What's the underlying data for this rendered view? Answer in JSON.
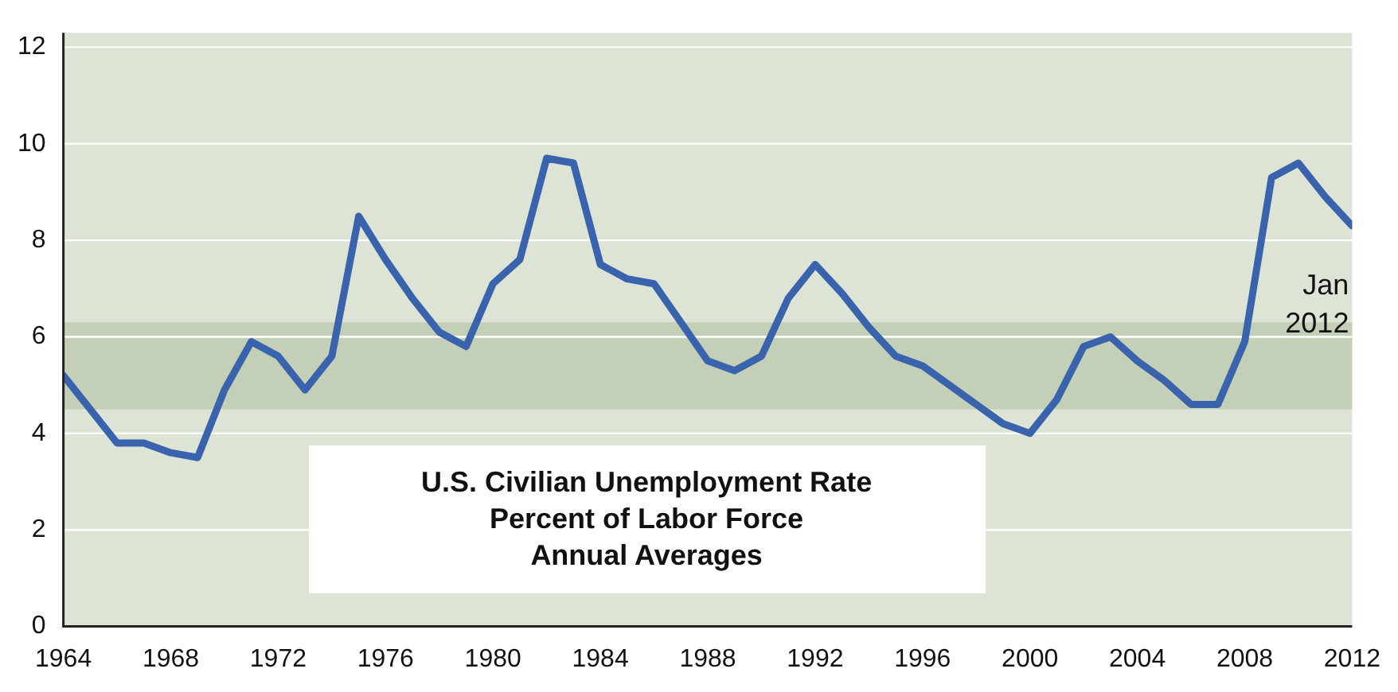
{
  "chart_data": {
    "type": "line",
    "title": "U.S. Civilian Unemployment Rate",
    "subtitle": "Percent of Labor Force",
    "annotations": [
      "Annual Averages",
      {
        "text": "Jan 2012",
        "x": 2012,
        "y": 8.3
      }
    ],
    "x": [
      1964,
      1965,
      1966,
      1967,
      1968,
      1969,
      1970,
      1971,
      1972,
      1973,
      1974,
      1975,
      1976,
      1977,
      1978,
      1979,
      1980,
      1981,
      1982,
      1983,
      1984,
      1985,
      1986,
      1987,
      1988,
      1989,
      1990,
      1991,
      1992,
      1993,
      1994,
      1995,
      1996,
      1997,
      1998,
      1999,
      2000,
      2001,
      2002,
      2003,
      2004,
      2005,
      2006,
      2007,
      2008,
      2009,
      2010,
      2011,
      2012
    ],
    "series": [
      {
        "color": "#3a63ad",
        "values": [
          5.2,
          4.5,
          3.8,
          3.8,
          3.6,
          3.5,
          4.9,
          5.9,
          5.6,
          4.9,
          5.6,
          8.5,
          7.6,
          6.8,
          6.1,
          5.8,
          7.1,
          7.6,
          9.7,
          9.6,
          7.5,
          7.2,
          7.1,
          6.3,
          5.5,
          5.3,
          5.6,
          6.8,
          7.5,
          6.9,
          6.2,
          5.6,
          5.4,
          5.0,
          4.6,
          4.2,
          4.0,
          4.7,
          5.8,
          6.0,
          5.5,
          5.1,
          4.6,
          4.6,
          5.9,
          9.3,
          9.6,
          8.9,
          8.3
        ]
      }
    ],
    "xlim": [
      1964,
      2012
    ],
    "xticks": [
      1964,
      1968,
      1972,
      1976,
      1980,
      1984,
      1988,
      1992,
      1996,
      2000,
      2004,
      2008,
      2012
    ],
    "ylim": [
      0,
      12.3
    ],
    "yticks": [
      0,
      2,
      4,
      6,
      8,
      10,
      12
    ],
    "grid": "y",
    "marker": "none",
    "line_style": "solid",
    "legend": false,
    "bands": [
      {
        "axis": "y",
        "from": 4.5,
        "to": 6.3,
        "color": "#c3cfb6"
      }
    ]
  }
}
